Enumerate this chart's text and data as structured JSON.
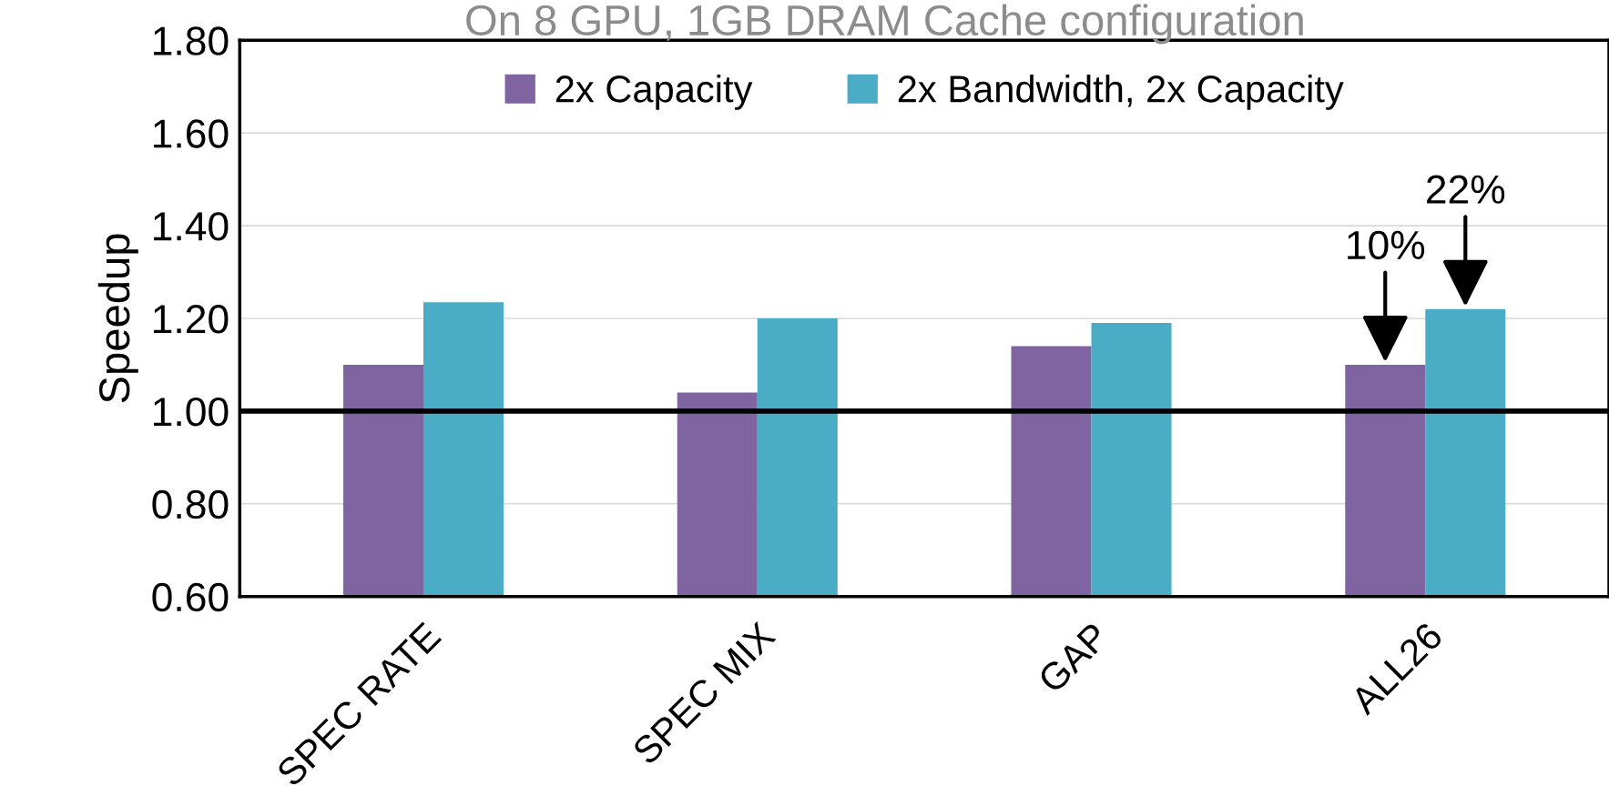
{
  "chart_data": {
    "type": "bar",
    "title": "On 8 GPU, 1GB DRAM Cache configuration",
    "ylabel": "Speedup",
    "categories": [
      "SPEC RATE",
      "SPEC MIX",
      "GAP",
      "ALL26"
    ],
    "series": [
      {
        "name": "2x Capacity",
        "color": "#8064a2",
        "values": [
          1.1,
          1.04,
          1.14,
          1.1
        ]
      },
      {
        "name": "2x Bandwidth, 2x Capacity",
        "color": "#4bacc6",
        "values": [
          1.235,
          1.2,
          1.19,
          1.22
        ]
      }
    ],
    "ylim": [
      0.6,
      1.8
    ],
    "yticks": [
      {
        "value": 0.6,
        "label": "0.60"
      },
      {
        "value": 0.8,
        "label": "0.80"
      },
      {
        "value": 1.0,
        "label": "1.00"
      },
      {
        "value": 1.2,
        "label": "1.20"
      },
      {
        "value": 1.4,
        "label": "1.40"
      },
      {
        "value": 1.6,
        "label": "1.60"
      },
      {
        "value": 1.8,
        "label": "1.80"
      }
    ],
    "grid": "y",
    "legend": "top",
    "ref_lines": [
      {
        "axis": "y",
        "value": 1.0,
        "color": "#000000"
      }
    ],
    "annotations": [
      "10%",
      "22%"
    ]
  }
}
